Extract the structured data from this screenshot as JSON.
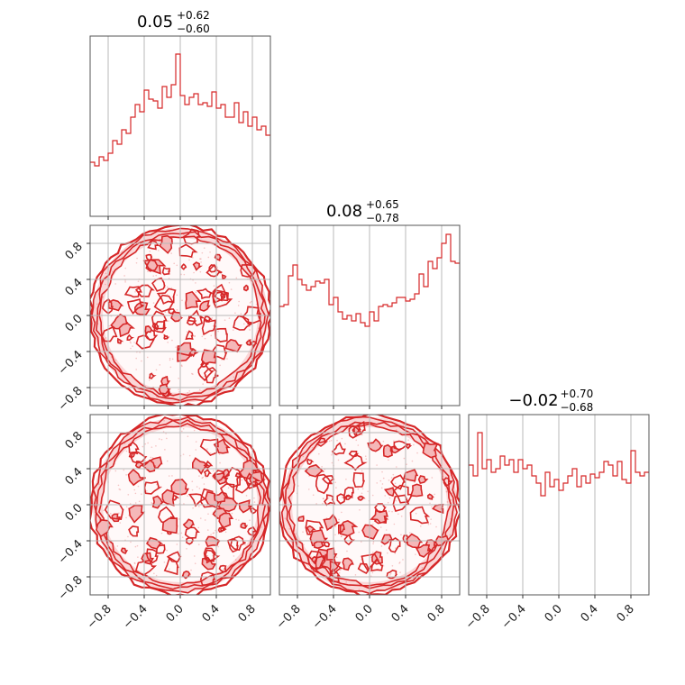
{
  "chart_data": [
    {
      "type": "histogram",
      "panel": "hist-x0",
      "title": {
        "value": "0.05",
        "plus": "+0.62",
        "minus": "−0.60"
      },
      "bins": [
        -1.0,
        1.0
      ],
      "heights": [
        0.3,
        0.28,
        0.33,
        0.31,
        0.35,
        0.42,
        0.4,
        0.48,
        0.46,
        0.55,
        0.62,
        0.58,
        0.7,
        0.65,
        0.64,
        0.6,
        0.72,
        0.66,
        0.73,
        0.9,
        0.67,
        0.62,
        0.66,
        0.68,
        0.62,
        0.63,
        0.61,
        0.69,
        0.6,
        0.62,
        0.55,
        0.55,
        0.63,
        0.52,
        0.58,
        0.5,
        0.55,
        0.48,
        0.5,
        0.45
      ],
      "ylim": [
        0,
        1
      ],
      "grid": true,
      "tick_labels": [
        "−0.8",
        "−0.4",
        "0.0",
        "0.4",
        "0.8"
      ],
      "tick_values": [
        -0.8,
        -0.4,
        0.0,
        0.4,
        0.8
      ]
    },
    {
      "type": "contour",
      "panel": "contour-x0-x1",
      "xlim": [
        -1,
        1
      ],
      "ylim": [
        -1,
        1
      ],
      "shape": "unit-disk",
      "color": "#d62728",
      "y_tick_labels": [
        "−0.8",
        "−0.4",
        "0.0",
        "0.4",
        "0.8"
      ],
      "y_tick_values": [
        -0.8,
        -0.4,
        0.0,
        0.4,
        0.8
      ]
    },
    {
      "type": "histogram",
      "panel": "hist-x1",
      "title": {
        "value": "0.08",
        "plus": "+0.65",
        "minus": "−0.78"
      },
      "bins": [
        -1.0,
        1.0
      ],
      "heights": [
        0.55,
        0.56,
        0.72,
        0.78,
        0.7,
        0.67,
        0.64,
        0.66,
        0.69,
        0.68,
        0.7,
        0.56,
        0.6,
        0.52,
        0.48,
        0.5,
        0.47,
        0.51,
        0.46,
        0.44,
        0.52,
        0.47,
        0.55,
        0.56,
        0.55,
        0.57,
        0.6,
        0.6,
        0.58,
        0.59,
        0.62,
        0.73,
        0.66,
        0.8,
        0.76,
        0.82,
        0.9,
        0.95,
        0.8,
        0.79
      ],
      "ylim": [
        0,
        1
      ],
      "grid": true,
      "tick_labels": [
        "−0.8",
        "−0.4",
        "0.0",
        "0.4",
        "0.8"
      ],
      "tick_values": [
        -0.8,
        -0.4,
        0.0,
        0.4,
        0.8
      ]
    },
    {
      "type": "contour",
      "panel": "contour-x0-x2",
      "xlim": [
        -1,
        1
      ],
      "ylim": [
        -1,
        1
      ],
      "shape": "unit-disk",
      "color": "#d62728",
      "x_tick_labels": [
        "−0.8",
        "−0.4",
        "0.0",
        "0.4",
        "0.8"
      ],
      "y_tick_labels": [
        "−0.8",
        "−0.4",
        "0.0",
        "0.4",
        "0.8"
      ],
      "x_tick_values": [
        -0.8,
        -0.4,
        0.0,
        0.4,
        0.8
      ],
      "y_tick_values": [
        -0.8,
        -0.4,
        0.0,
        0.4,
        0.8
      ]
    },
    {
      "type": "contour",
      "panel": "contour-x1-x2",
      "xlim": [
        -1,
        1
      ],
      "ylim": [
        -1,
        1
      ],
      "shape": "unit-disk",
      "color": "#d62728",
      "x_tick_labels": [
        "−0.8",
        "−0.4",
        "0.0",
        "0.4",
        "0.8"
      ],
      "x_tick_values": [
        -0.8,
        -0.4,
        0.0,
        0.4,
        0.8
      ]
    },
    {
      "type": "histogram",
      "panel": "hist-x2",
      "title": {
        "value": "−0.02",
        "plus": "+0.70",
        "minus": "−0.68"
      },
      "bins": [
        -1.0,
        1.0
      ],
      "heights": [
        0.72,
        0.66,
        0.9,
        0.7,
        0.75,
        0.68,
        0.7,
        0.77,
        0.72,
        0.75,
        0.68,
        0.75,
        0.7,
        0.72,
        0.66,
        0.62,
        0.55,
        0.68,
        0.6,
        0.64,
        0.58,
        0.62,
        0.66,
        0.7,
        0.6,
        0.66,
        0.62,
        0.67,
        0.65,
        0.68,
        0.74,
        0.72,
        0.66,
        0.74,
        0.64,
        0.62,
        0.8,
        0.68,
        0.66,
        0.68
      ],
      "ylim": [
        0,
        1
      ],
      "grid": true,
      "tick_labels": [
        "−0.8",
        "−0.4",
        "0.0",
        "0.4",
        "0.8"
      ],
      "tick_values": [
        -0.8,
        -0.4,
        0.0,
        0.4,
        0.8
      ]
    }
  ],
  "colors": {
    "line": "#d62728",
    "fill_light": "#f5b7b8",
    "frame": "#555555",
    "grid": "#b8b8b8"
  }
}
